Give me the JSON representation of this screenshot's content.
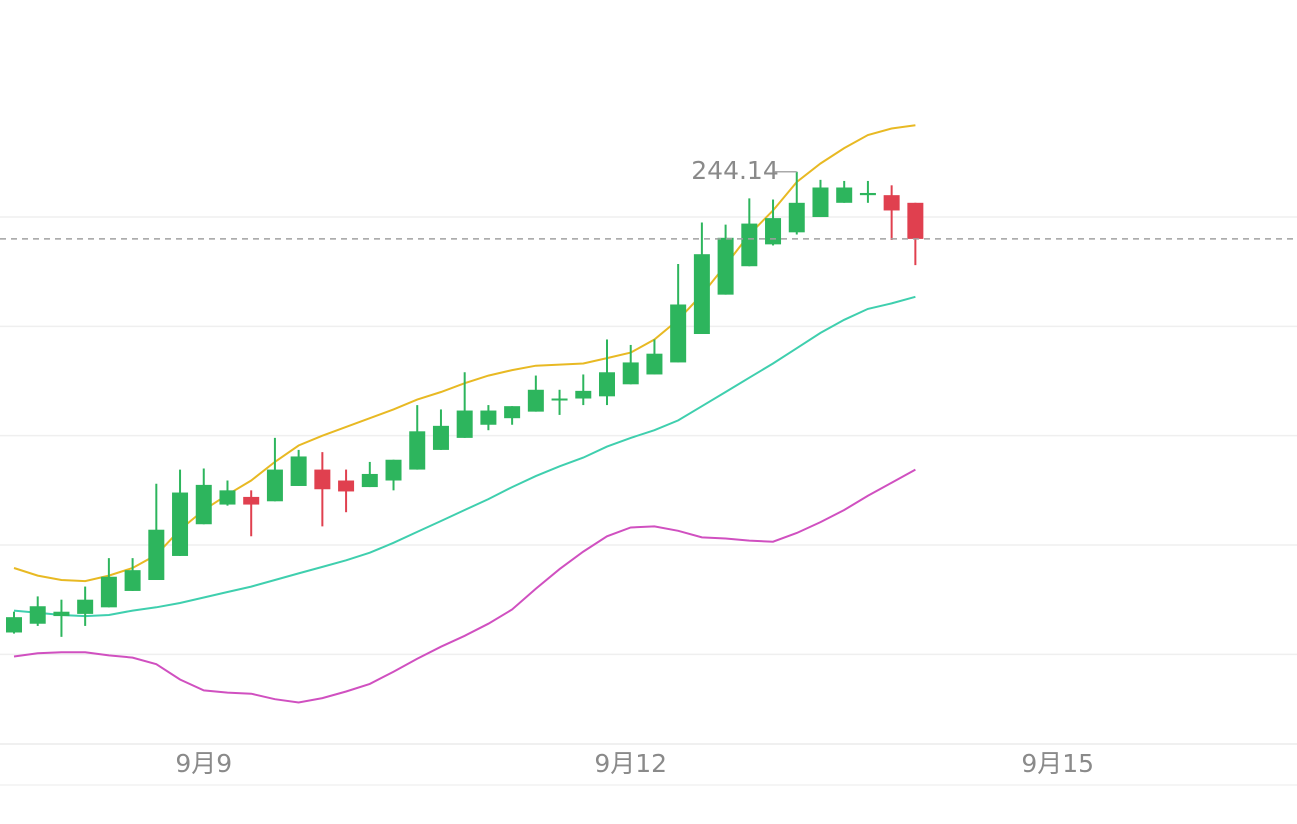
{
  "chart_data": {
    "type": "candlestick",
    "categories": [
      null,
      null,
      null,
      null,
      null,
      null,
      null,
      null,
      "9月9",
      null,
      null,
      null,
      null,
      null,
      null,
      null,
      null,
      null,
      null,
      null,
      null,
      null,
      null,
      null,
      null,
      null,
      "9月12",
      null,
      null,
      null,
      null,
      null,
      null,
      null,
      null,
      null,
      null,
      null,
      null,
      null,
      null,
      null,
      null,
      null,
      "9月15",
      null,
      null,
      null,
      null,
      null,
      null,
      null,
      null,
      null,
      null
    ],
    "open": [
      202.0,
      202.8,
      203.5,
      203.7,
      204.3,
      205.8,
      206.8,
      209.0,
      211.9,
      213.7,
      214.4,
      214.0,
      215.4,
      216.9,
      215.9,
      215.3,
      215.9,
      216.9,
      218.7,
      219.8,
      221.0,
      221.6,
      222.2,
      223.3,
      223.4,
      223.6,
      224.7,
      225.6,
      226.7,
      229.3,
      232.9,
      235.5,
      237.5,
      238.6,
      240.0,
      241.3,
      242.0,
      242.0,
      241.3,
      null,
      null,
      null,
      null,
      null,
      null,
      null,
      null,
      null,
      null,
      null,
      null,
      null,
      null,
      null,
      null
    ],
    "high": [
      203.9,
      205.3,
      205.0,
      206.2,
      208.8,
      208.8,
      215.6,
      216.9,
      217.0,
      215.9,
      215.0,
      219.8,
      218.7,
      218.5,
      216.9,
      217.6,
      217.8,
      222.8,
      222.4,
      225.8,
      222.8,
      222.7,
      225.5,
      224.2,
      225.6,
      228.8,
      228.3,
      228.8,
      235.7,
      239.5,
      239.3,
      241.7,
      241.6,
      244.14,
      243.4,
      243.3,
      243.3,
      242.9,
      241.3,
      null,
      null,
      null,
      null,
      null,
      null,
      null,
      null,
      null,
      null,
      null,
      null,
      null,
      null,
      null,
      null
    ],
    "low": [
      201.9,
      202.6,
      201.6,
      202.6,
      204.3,
      205.8,
      206.8,
      209.0,
      211.9,
      213.6,
      210.8,
      214.0,
      215.4,
      211.7,
      213.0,
      215.3,
      215.0,
      216.9,
      218.7,
      219.8,
      220.5,
      221.0,
      222.2,
      221.9,
      222.8,
      222.8,
      224.7,
      225.6,
      226.7,
      229.3,
      232.9,
      235.5,
      237.4,
      238.4,
      240.0,
      241.3,
      241.3,
      237.9,
      235.6,
      null,
      null,
      null,
      null,
      null,
      null,
      null,
      null,
      null,
      null,
      null,
      null,
      null,
      null,
      null,
      null
    ],
    "close": [
      203.4,
      204.4,
      203.9,
      205.0,
      207.1,
      207.7,
      211.4,
      214.8,
      215.5,
      215.0,
      213.7,
      216.9,
      218.1,
      215.1,
      214.9,
      216.5,
      217.8,
      220.4,
      220.9,
      222.3,
      222.3,
      222.7,
      224.2,
      223.4,
      224.1,
      225.8,
      226.7,
      227.5,
      232.0,
      236.6,
      238.1,
      239.4,
      239.9,
      241.3,
      242.7,
      242.7,
      242.2,
      240.6,
      238.0,
      null,
      null,
      null,
      null,
      null,
      null,
      null,
      null,
      null,
      null,
      null,
      null,
      null,
      null,
      null,
      null
    ],
    "up_color": "#2db55d",
    "down_color": "#e0404f",
    "lines": [
      {
        "color": "#e8b923",
        "values": [
          207.9,
          207.2,
          206.8,
          206.7,
          207.2,
          207.9,
          209.1,
          211.4,
          213.2,
          214.6,
          215.9,
          217.6,
          219.1,
          220.0,
          220.8,
          221.6,
          222.4,
          223.3,
          224.0,
          224.8,
          225.5,
          226.0,
          226.4,
          226.5,
          226.6,
          227.1,
          227.6,
          228.8,
          230.6,
          232.9,
          235.6,
          238.4,
          240.6,
          243.2,
          244.9,
          246.3,
          247.5,
          248.1,
          248.4,
          null,
          null,
          null,
          null,
          null,
          null,
          null,
          null,
          null,
          null,
          null,
          null,
          null,
          null,
          null,
          null
        ]
      },
      {
        "color": "#3fcfae",
        "values": [
          204.0,
          203.8,
          203.6,
          203.5,
          203.6,
          204.0,
          204.3,
          204.7,
          205.2,
          205.7,
          206.2,
          206.8,
          207.4,
          208.0,
          208.6,
          209.3,
          210.2,
          211.2,
          212.2,
          213.2,
          214.2,
          215.3,
          216.3,
          217.2,
          218.0,
          219.0,
          219.8,
          220.5,
          221.4,
          222.7,
          224.0,
          225.3,
          226.6,
          228.0,
          229.4,
          230.6,
          231.6,
          232.1,
          232.7,
          null,
          null,
          null,
          null,
          null,
          null,
          null,
          null,
          null,
          null,
          null,
          null,
          null,
          null,
          null,
          null
        ]
      },
      {
        "color": "#d050c0",
        "values": [
          199.8,
          200.1,
          200.2,
          200.2,
          199.9,
          199.7,
          199.1,
          197.7,
          196.7,
          196.5,
          196.4,
          195.9,
          195.6,
          196.0,
          196.6,
          197.3,
          198.4,
          199.6,
          200.7,
          201.7,
          202.8,
          204.1,
          206.0,
          207.8,
          209.4,
          210.8,
          211.6,
          211.7,
          211.3,
          210.7,
          210.6,
          210.4,
          210.3,
          211.1,
          212.1,
          213.2,
          214.5,
          215.7,
          216.9,
          null,
          null,
          null,
          null,
          null,
          null,
          null,
          null,
          null,
          null,
          null,
          null,
          null,
          null,
          null,
          null
        ]
      }
    ],
    "ylim": [
      191.8,
      259.85
    ],
    "yticks": [
      200,
      210,
      220,
      230,
      240
    ],
    "ytick_labels": false,
    "grid": true,
    "max_label_index": 33
  }
}
